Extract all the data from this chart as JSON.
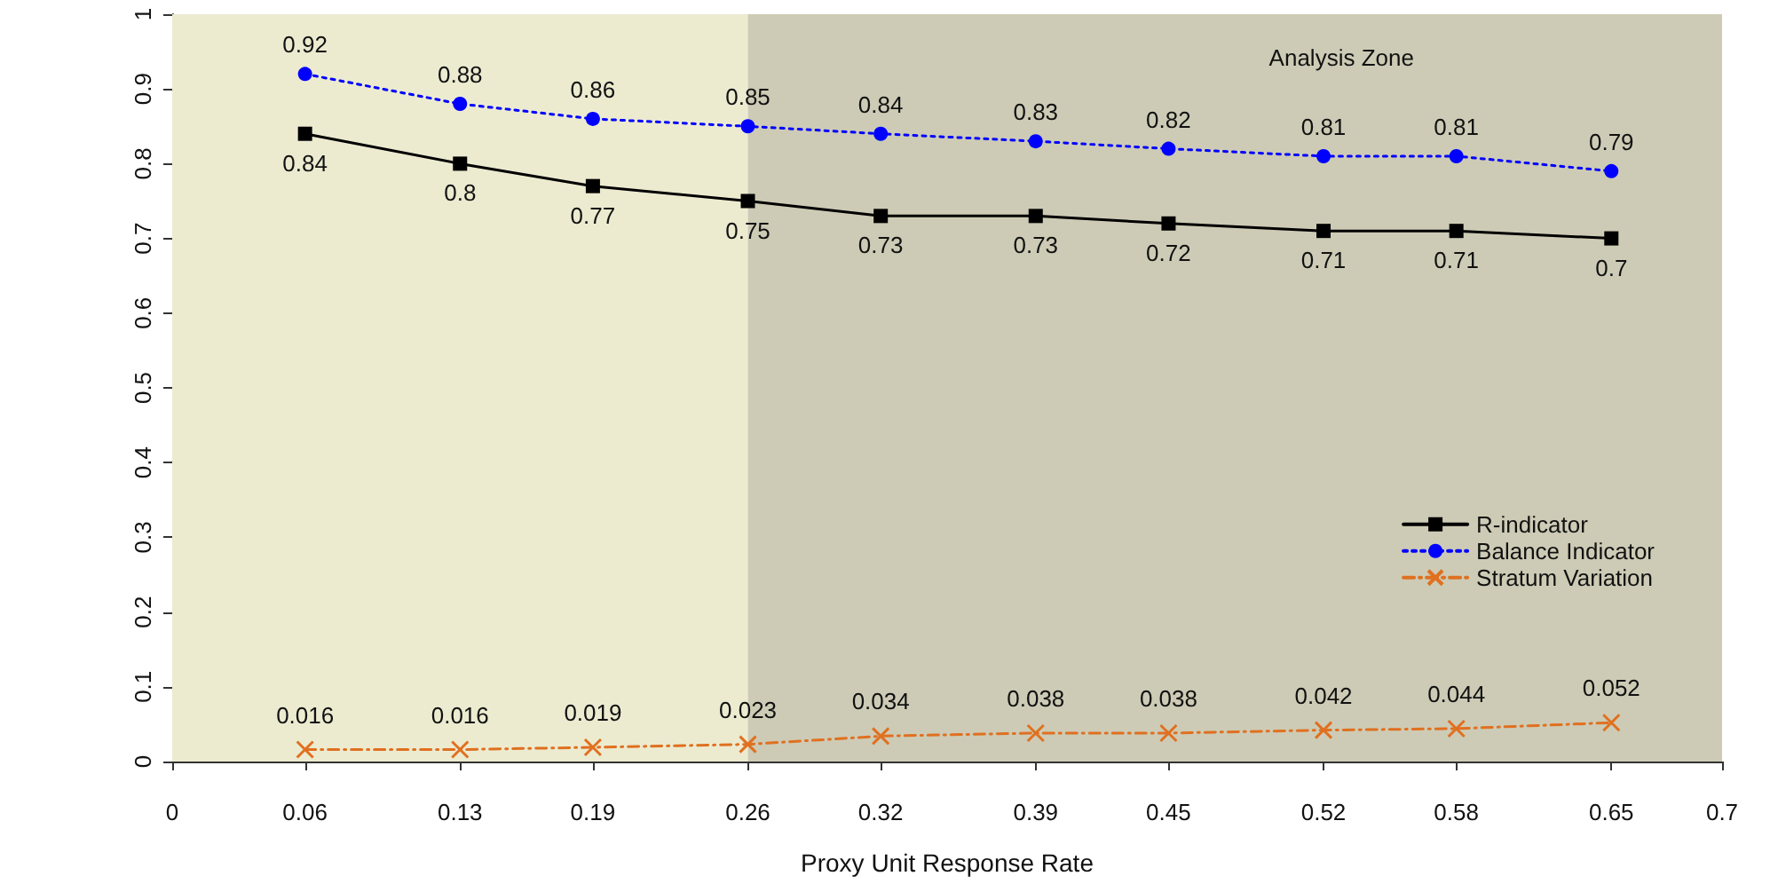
{
  "chart_data": {
    "type": "line",
    "xlabel": "Proxy Unit Response Rate",
    "x": [
      0.06,
      0.13,
      0.19,
      0.26,
      0.32,
      0.39,
      0.45,
      0.52,
      0.58,
      0.65
    ],
    "series": [
      {
        "name": "R-indicator",
        "color": "#000000",
        "marker": "square",
        "line_style": "solid",
        "values": [
          0.84,
          0.8,
          0.77,
          0.75,
          0.73,
          0.73,
          0.72,
          0.71,
          0.71,
          0.7
        ]
      },
      {
        "name": "Balance Indicator",
        "color": "#0000ff",
        "marker": "circle",
        "line_style": "dotted",
        "values": [
          0.92,
          0.88,
          0.86,
          0.85,
          0.84,
          0.83,
          0.82,
          0.81,
          0.81,
          0.79
        ]
      },
      {
        "name": "Stratum Variation",
        "color": "#e07020",
        "marker": "cross",
        "line_style": "dashed",
        "values": [
          0.016,
          0.016,
          0.019,
          0.023,
          0.034,
          0.038,
          0.038,
          0.042,
          0.044,
          0.052
        ]
      }
    ],
    "xlim": [
      0,
      0.7
    ],
    "xticks": [
      0,
      0.06,
      0.13,
      0.19,
      0.26,
      0.32,
      0.39,
      0.45,
      0.52,
      0.58,
      0.65,
      0.7
    ],
    "ylim": [
      0,
      1
    ],
    "yticks": [
      0,
      0.1,
      0.2,
      0.3,
      0.4,
      0.5,
      0.6,
      0.7,
      0.8,
      0.9,
      1
    ],
    "bands": [
      {
        "axis": "x",
        "from": 0,
        "to": 0.26,
        "label": null,
        "color": "#ecebd0"
      },
      {
        "axis": "x",
        "from": 0.26,
        "to": 0.7,
        "label": "Analysis Zone",
        "color": "#cdcbb5"
      }
    ],
    "data_labels": true,
    "grid": false,
    "legend": "right"
  }
}
